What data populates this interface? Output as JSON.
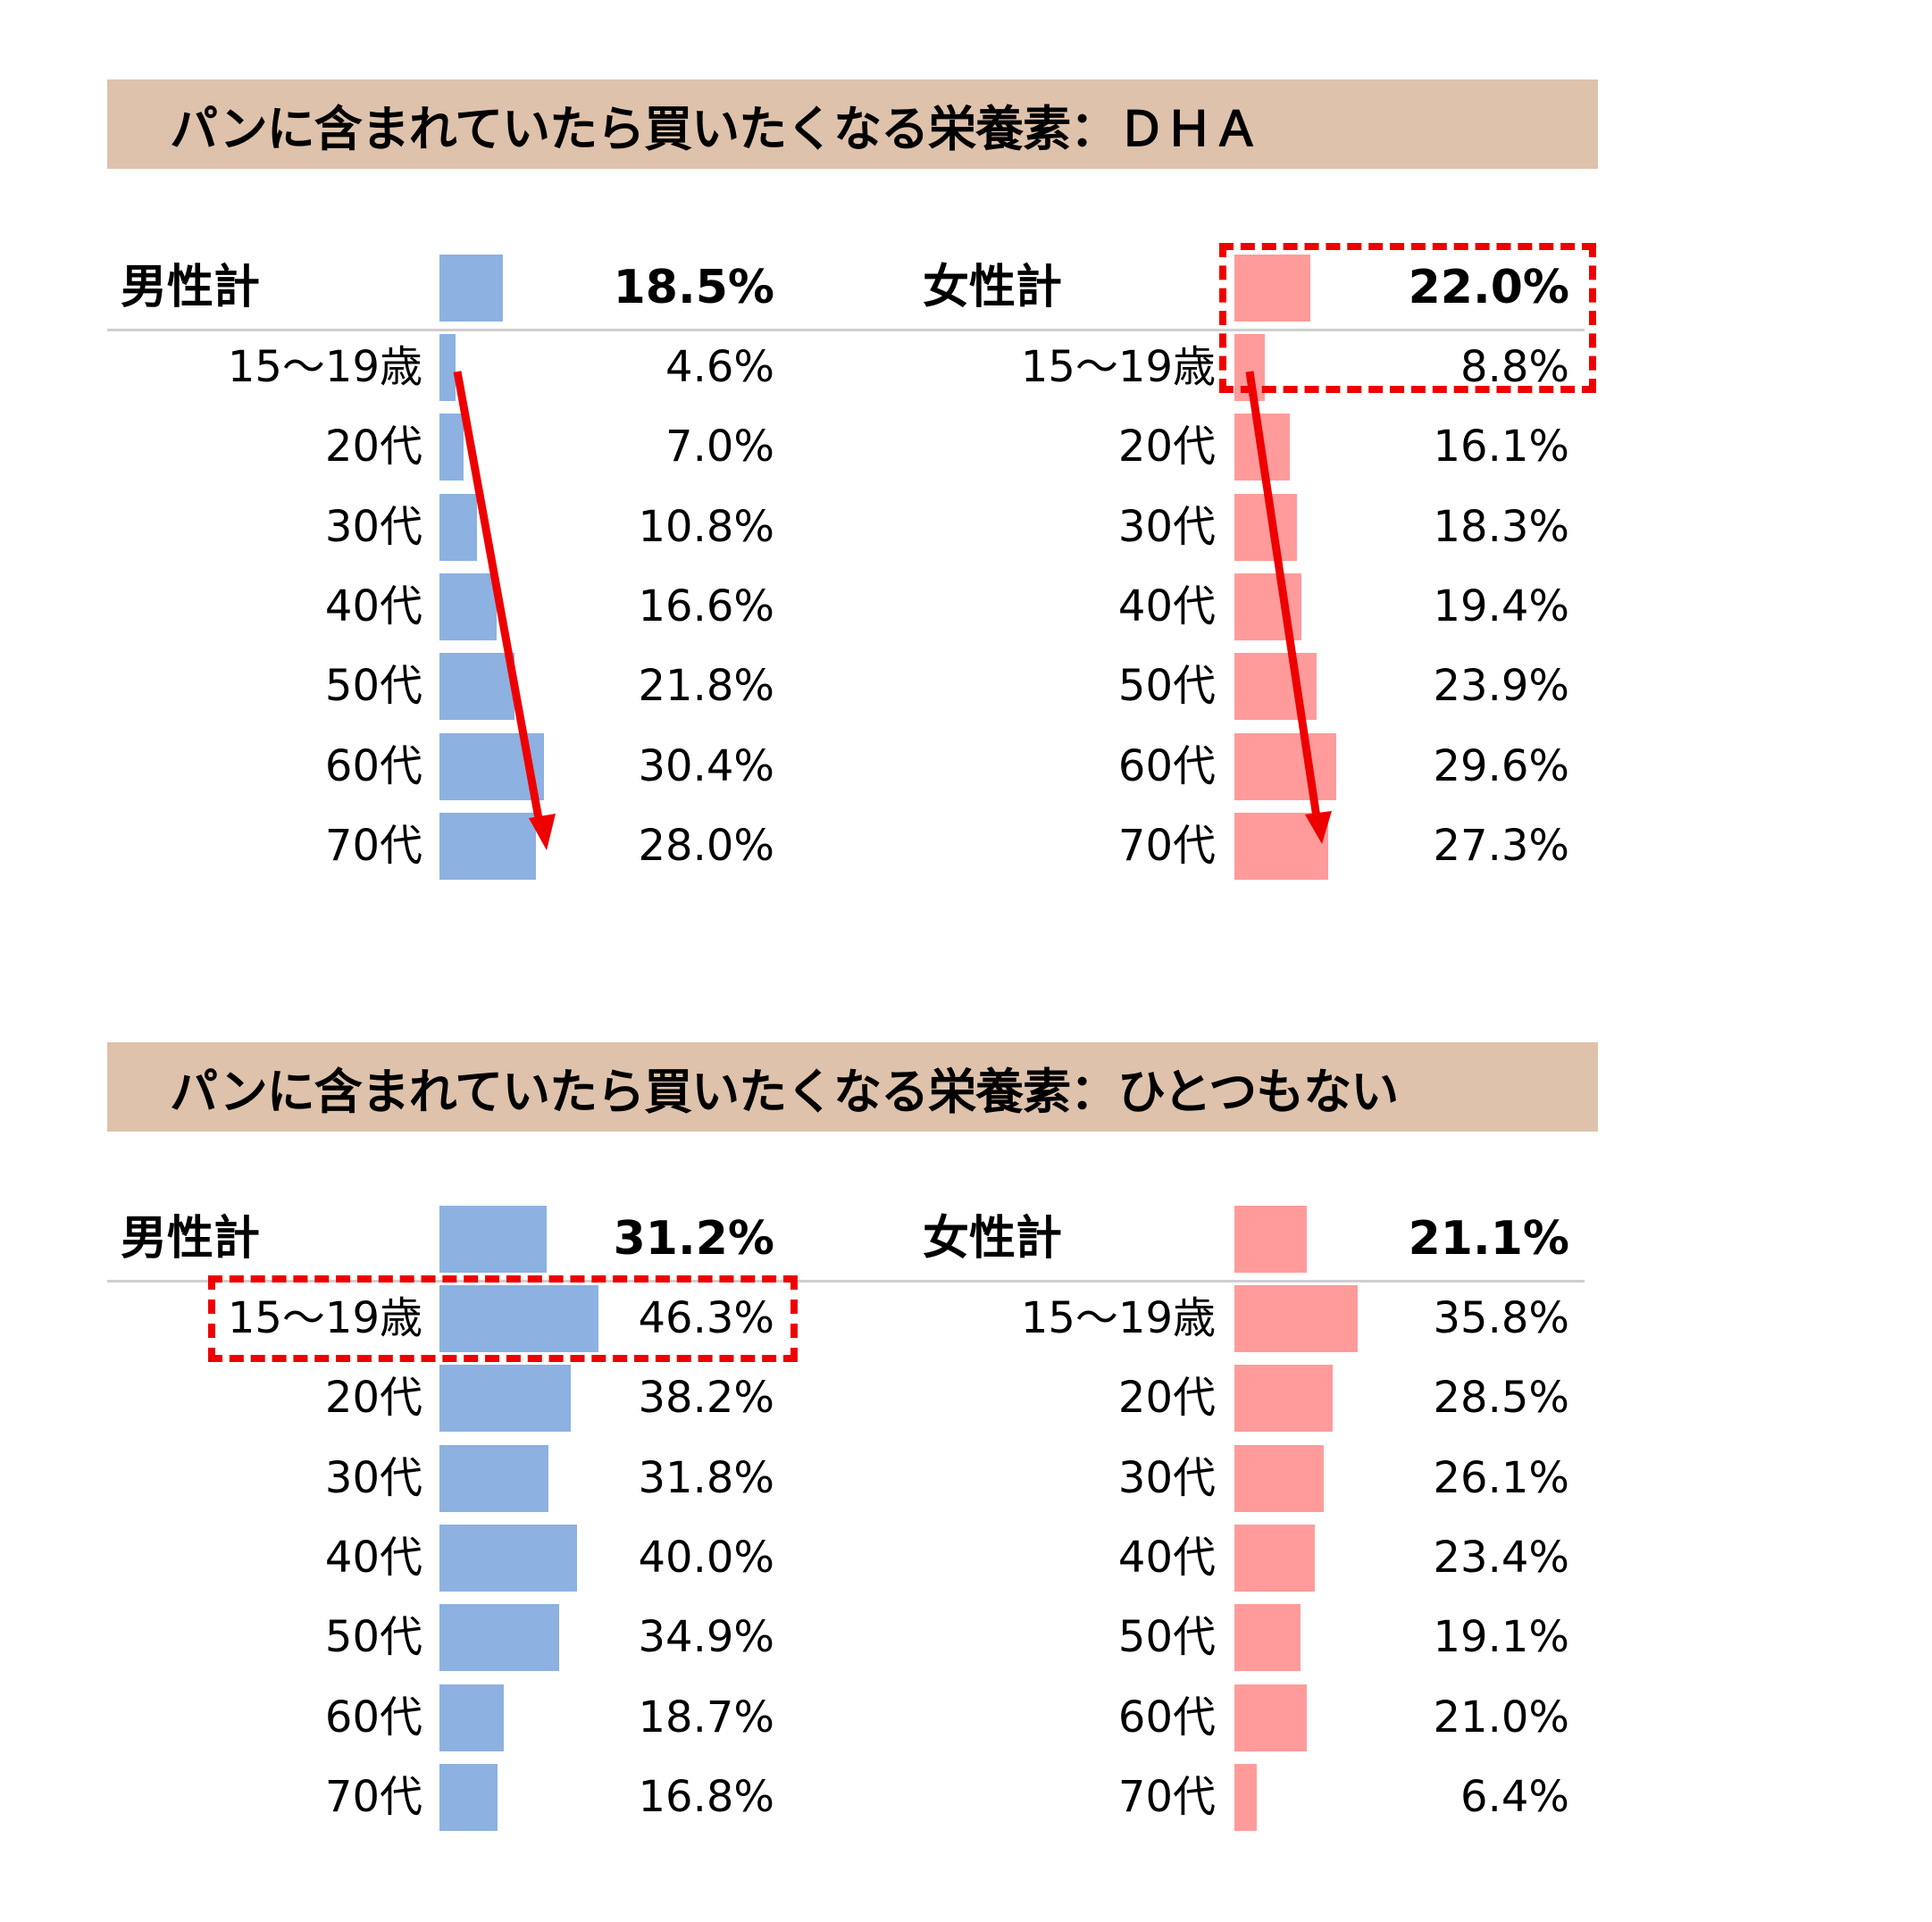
{
  "colors": {
    "banner_bg": "#dec2ab",
    "male_bar": "#8db1e0",
    "female_bar": "#ff9b9b",
    "highlight": "#ee0000",
    "separator": "#cfcfcf"
  },
  "sections": [
    {
      "title": "パンに含まれていたら買いたくなる栄養素：ＤＨＡ",
      "male": {
        "total_label": "男性計",
        "total_value": "18.5%",
        "rows": [
          {
            "label": "15～19歳",
            "value": "4.6%"
          },
          {
            "label": "20代",
            "value": "7.0%"
          },
          {
            "label": "30代",
            "value": "10.8%"
          },
          {
            "label": "40代",
            "value": "16.6%"
          },
          {
            "label": "50代",
            "value": "21.8%"
          },
          {
            "label": "60代",
            "value": "30.4%"
          },
          {
            "label": "70代",
            "value": "28.0%"
          }
        ]
      },
      "female": {
        "total_label": "女性計",
        "total_value": "22.0%",
        "rows": [
          {
            "label": "15～19歳",
            "value": "8.8%"
          },
          {
            "label": "20代",
            "value": "16.1%"
          },
          {
            "label": "30代",
            "value": "18.3%"
          },
          {
            "label": "40代",
            "value": "19.4%"
          },
          {
            "label": "50代",
            "value": "23.9%"
          },
          {
            "label": "60代",
            "value": "29.6%"
          },
          {
            "label": "70代",
            "value": "27.3%"
          }
        ]
      },
      "highlight": "女性計 22.0%",
      "annotations": "red downward arrows across male and female bars indicating increase with age"
    },
    {
      "title": "パンに含まれていたら買いたくなる栄養素：ひとつもない",
      "male": {
        "total_label": "男性計",
        "total_value": "31.2%",
        "rows": [
          {
            "label": "15～19歳",
            "value": "46.3%"
          },
          {
            "label": "20代",
            "value": "38.2%"
          },
          {
            "label": "30代",
            "value": "31.8%"
          },
          {
            "label": "40代",
            "value": "40.0%"
          },
          {
            "label": "50代",
            "value": "34.9%"
          },
          {
            "label": "60代",
            "value": "18.7%"
          },
          {
            "label": "70代",
            "value": "16.8%"
          }
        ]
      },
      "female": {
        "total_label": "女性計",
        "total_value": "21.1%",
        "rows": [
          {
            "label": "15～19歳",
            "value": "35.8%"
          },
          {
            "label": "20代",
            "value": "28.5%"
          },
          {
            "label": "30代",
            "value": "26.1%"
          },
          {
            "label": "40代",
            "value": "23.4%"
          },
          {
            "label": "50代",
            "value": "19.1%"
          },
          {
            "label": "60代",
            "value": "21.0%"
          },
          {
            "label": "70代",
            "value": "6.4%"
          }
        ]
      },
      "highlight": "男性 15～19歳 46.3%"
    }
  ],
  "chart_data": [
    {
      "type": "bar",
      "orientation": "horizontal",
      "title": "パンに含まれていたら買いたくなる栄養素：ＤＨＡ",
      "categories": [
        "計",
        "15～19歳",
        "20代",
        "30代",
        "40代",
        "50代",
        "60代",
        "70代"
      ],
      "series": [
        {
          "name": "男性",
          "values": [
            18.5,
            4.6,
            7.0,
            10.8,
            16.6,
            21.8,
            30.4,
            28.0
          ]
        },
        {
          "name": "女性",
          "values": [
            22.0,
            8.8,
            16.1,
            18.3,
            19.4,
            23.9,
            29.6,
            27.3
          ]
        }
      ],
      "unit": "%",
      "xlabel": "",
      "ylabel": "",
      "grid": false,
      "annotations": [
        "女性計 22.0% highlighted with red dashed box",
        "red arrows pointing downward (increase with age) on both genders"
      ]
    },
    {
      "type": "bar",
      "orientation": "horizontal",
      "title": "パンに含まれていたら買いたくなる栄養素：ひとつもない",
      "categories": [
        "計",
        "15～19歳",
        "20代",
        "30代",
        "40代",
        "50代",
        "60代",
        "70代"
      ],
      "series": [
        {
          "name": "男性",
          "values": [
            31.2,
            46.3,
            38.2,
            31.8,
            40.0,
            34.9,
            18.7,
            16.8
          ]
        },
        {
          "name": "女性",
          "values": [
            21.1,
            35.8,
            28.5,
            26.1,
            23.4,
            19.1,
            21.0,
            6.4
          ]
        }
      ],
      "unit": "%",
      "xlabel": "",
      "ylabel": "",
      "grid": false,
      "annotations": [
        "男性 15～19歳 46.3% highlighted with red dashed box"
      ]
    }
  ]
}
